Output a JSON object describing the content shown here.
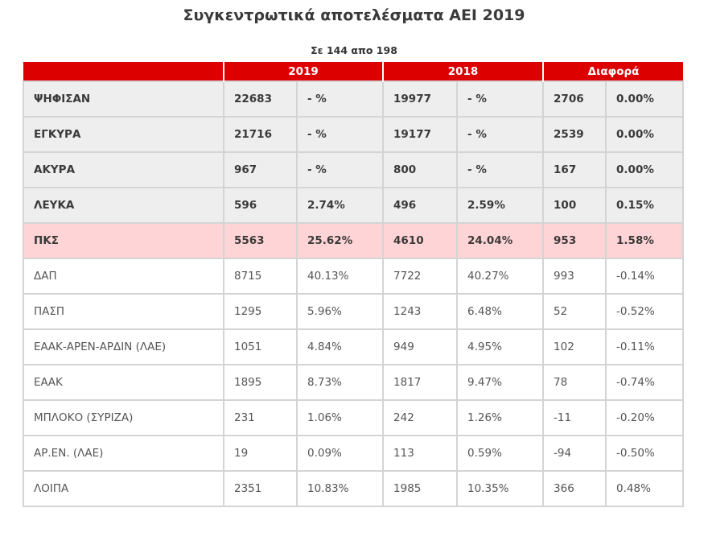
{
  "page": {
    "title": "Συγκεντρωτικά αποτελέσματα ΑΕΙ 2019",
    "subtitle": "Σε 144 απο 198"
  },
  "table": {
    "headers": [
      "",
      "2019",
      "2018",
      "Διαφορά"
    ],
    "colors": {
      "header_bg": "#dd0000",
      "summary_bg": "#eeeeee",
      "highlight_bg": "#ffd4d6",
      "border": "#d4d4d4"
    },
    "rows": [
      {
        "type": "summary",
        "label": "ΨΗΦΙΣΑΝ",
        "v2019": "22683",
        "p2019": "- %",
        "v2018": "19977",
        "p2018": "- %",
        "vdiff": "2706",
        "pdiff": "0.00%"
      },
      {
        "type": "summary",
        "label": "ΕΓΚΥΡΑ",
        "v2019": "21716",
        "p2019": "- %",
        "v2018": "19177",
        "p2018": "- %",
        "vdiff": "2539",
        "pdiff": "0.00%"
      },
      {
        "type": "summary",
        "label": "ΑΚΥΡΑ",
        "v2019": "967",
        "p2019": "- %",
        "v2018": "800",
        "p2018": "- %",
        "vdiff": "167",
        "pdiff": "0.00%"
      },
      {
        "type": "summary",
        "label": "ΛΕΥΚΑ",
        "v2019": "596",
        "p2019": "2.74%",
        "v2018": "496",
        "p2018": "2.59%",
        "vdiff": "100",
        "pdiff": "0.15%"
      },
      {
        "type": "highlight",
        "label": "ΠΚΣ",
        "v2019": "5563",
        "p2019": "25.62%",
        "v2018": "4610",
        "p2018": "24.04%",
        "vdiff": "953",
        "pdiff": "1.58%"
      },
      {
        "type": "party",
        "label": "ΔΑΠ",
        "v2019": "8715",
        "p2019": "40.13%",
        "v2018": "7722",
        "p2018": "40.27%",
        "vdiff": "993",
        "pdiff": "-0.14%"
      },
      {
        "type": "party",
        "label": "ΠΑΣΠ",
        "v2019": "1295",
        "p2019": "5.96%",
        "v2018": "1243",
        "p2018": "6.48%",
        "vdiff": "52",
        "pdiff": "-0.52%"
      },
      {
        "type": "party",
        "label": "ΕΑΑΚ-ΑΡΕΝ-ΑΡΔΙΝ (ΛΑΕ)",
        "v2019": "1051",
        "p2019": "4.84%",
        "v2018": "949",
        "p2018": "4.95%",
        "vdiff": "102",
        "pdiff": "-0.11%"
      },
      {
        "type": "party",
        "label": "ΕΑΑΚ",
        "v2019": "1895",
        "p2019": "8.73%",
        "v2018": "1817",
        "p2018": "9.47%",
        "vdiff": "78",
        "pdiff": "-0.74%"
      },
      {
        "type": "party",
        "label": "ΜΠΛΟΚΟ (ΣΥΡΙΖΑ)",
        "v2019": "231",
        "p2019": "1.06%",
        "v2018": "242",
        "p2018": "1.26%",
        "vdiff": "-11",
        "pdiff": "-0.20%"
      },
      {
        "type": "party",
        "label": "ΑΡ.ΕΝ. (ΛΑΕ)",
        "v2019": "19",
        "p2019": "0.09%",
        "v2018": "113",
        "p2018": "0.59%",
        "vdiff": "-94",
        "pdiff": "-0.50%"
      },
      {
        "type": "party",
        "label": "ΛΟΙΠΑ",
        "v2019": "2351",
        "p2019": "10.83%",
        "v2018": "1985",
        "p2018": "10.35%",
        "vdiff": "366",
        "pdiff": "0.48%"
      }
    ]
  }
}
